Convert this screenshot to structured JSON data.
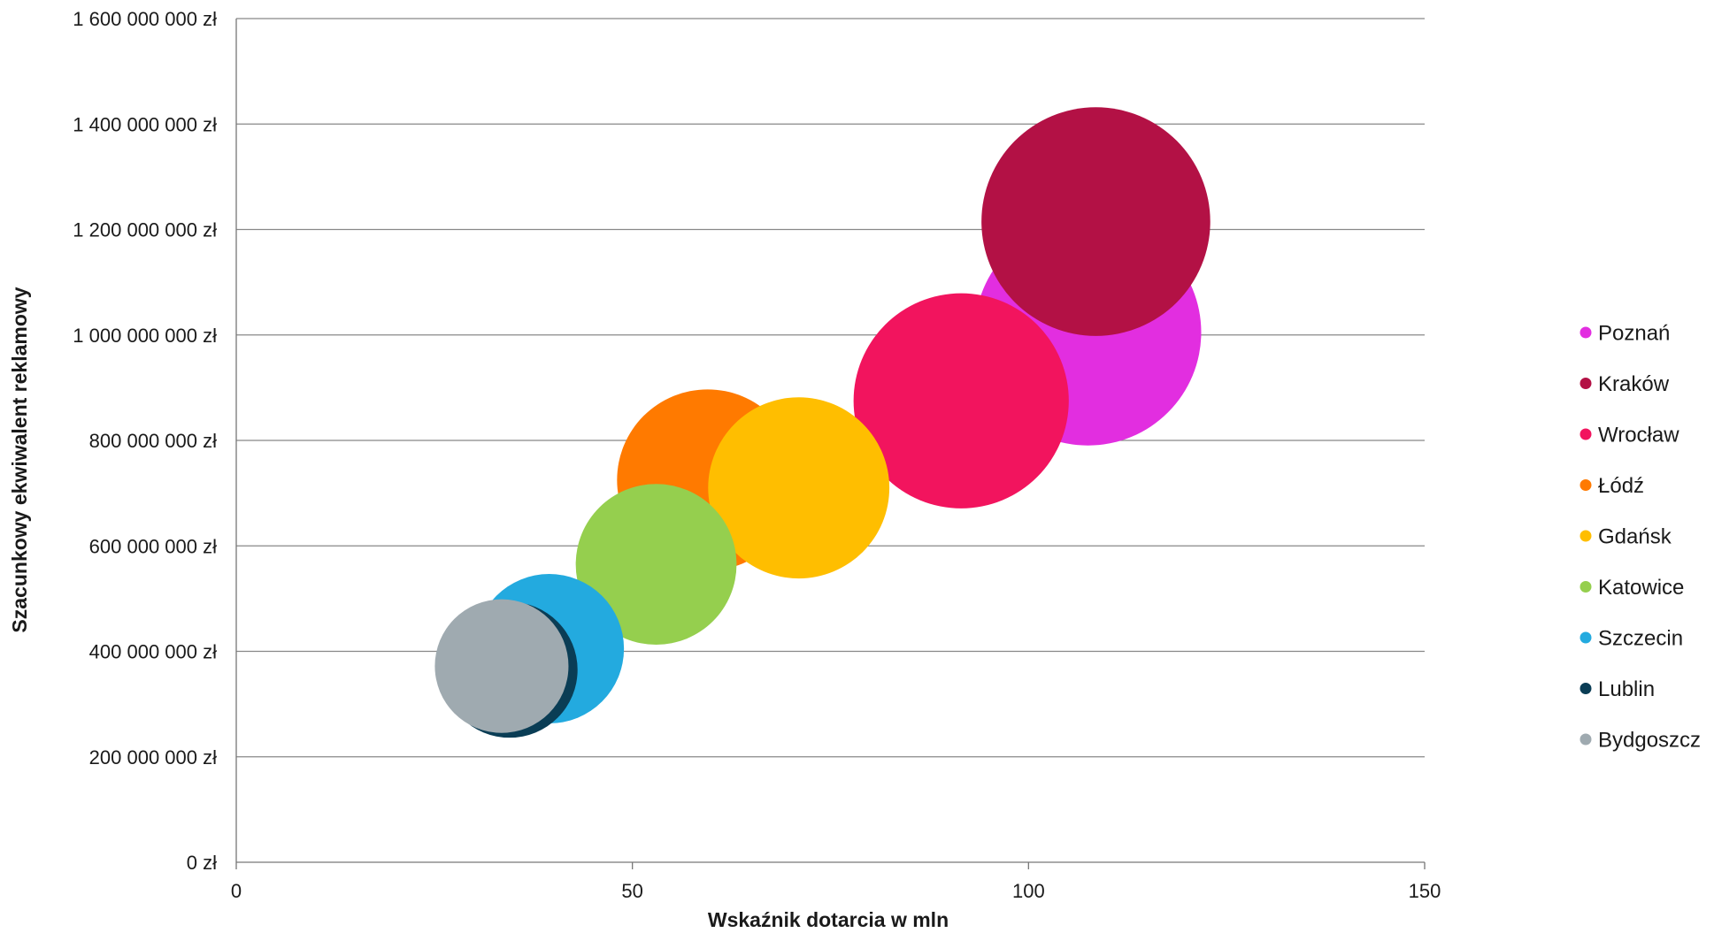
{
  "chart_data": {
    "type": "bubble",
    "xlabel": "Wskaźnik dotarcia w mln",
    "ylabel": "Szacunkowy ekwiwalent reklamowy",
    "xlim": [
      0,
      150
    ],
    "ylim": [
      0,
      1600000000
    ],
    "x_ticks": [
      {
        "value": 0,
        "label": "0"
      },
      {
        "value": 50,
        "label": "50"
      },
      {
        "value": 100,
        "label": "100"
      },
      {
        "value": 150,
        "label": "150"
      }
    ],
    "y_ticks": [
      {
        "value": 0,
        "label": "0 zł"
      },
      {
        "value": 200000000,
        "label": "200 000 000 zł"
      },
      {
        "value": 400000000,
        "label": "400 000 000 zł"
      },
      {
        "value": 600000000,
        "label": "600 000 000 zł"
      },
      {
        "value": 800000000,
        "label": "800 000 000 zł"
      },
      {
        "value": 1000000000,
        "label": "1 000 000 000 zł"
      },
      {
        "value": 1200000000,
        "label": "1 200 000 000 zł"
      },
      {
        "value": 1400000000,
        "label": "1 400 000 000 zł"
      },
      {
        "value": 1600000000,
        "label": "1 600 000 000 zł"
      }
    ],
    "grid": true,
    "legend_position": "right",
    "series": [
      {
        "name": "Poznań",
        "x": 107.5,
        "y": 1005000000,
        "size": 100,
        "color": "#E22EE0"
      },
      {
        "name": "Kraków",
        "x": 108.5,
        "y": 1215000000,
        "size": 101,
        "color": "#B31145"
      },
      {
        "name": "Wrocław",
        "x": 91.5,
        "y": 875000000,
        "size": 95,
        "color": "#F2145E"
      },
      {
        "name": "Łódź",
        "x": 59.5,
        "y": 725000000,
        "size": 80,
        "color": "#FF7A00"
      },
      {
        "name": "Gdańsk",
        "x": 71,
        "y": 710000000,
        "size": 80,
        "color": "#FFBE00"
      },
      {
        "name": "Katowice",
        "x": 53,
        "y": 565000000,
        "size": 71,
        "color": "#95CF4E"
      },
      {
        "name": "Szczecin",
        "x": 39.5,
        "y": 405000000,
        "size": 66,
        "color": "#23AADF"
      },
      {
        "name": "Lublin",
        "x": 34.5,
        "y": 365000000,
        "size": 60,
        "color": "#0A3D55"
      },
      {
        "name": "Bydgoszcz",
        "x": 33.5,
        "y": 372000000,
        "size": 59,
        "color": "#9FAAB0"
      }
    ]
  },
  "colors": {
    "grid": "#888888",
    "axis": "#777777",
    "text": "#1a1a1a"
  }
}
